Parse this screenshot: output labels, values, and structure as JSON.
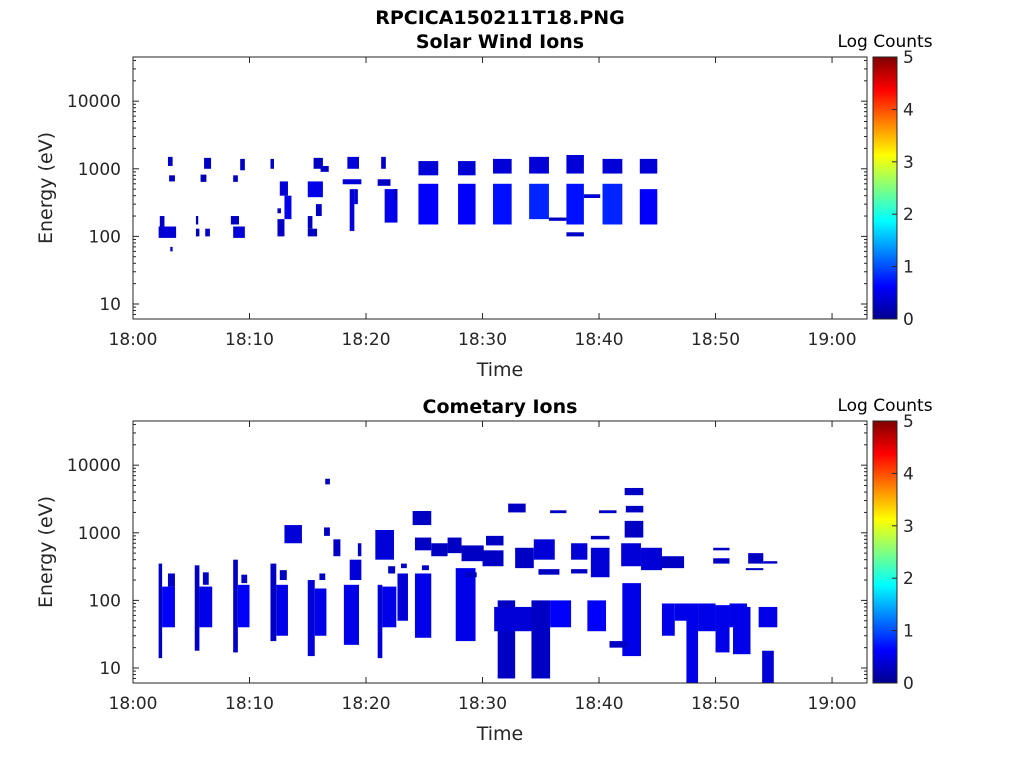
{
  "figure": {
    "title": "RPCICA150211T18.PNG"
  },
  "chart_data": [
    {
      "type": "heatmap",
      "title": "Solar Wind Ions",
      "xlabel": "Time",
      "ylabel": "Energy (eV)",
      "x_ticks": [
        "18:00",
        "18:10",
        "18:20",
        "18:30",
        "18:40",
        "18:50",
        "19:00"
      ],
      "xlim_minutes": [
        0,
        63
      ],
      "y_scale": "log",
      "y_ticks": [
        "10",
        "100",
        "1000",
        "10000"
      ],
      "ylim": [
        6,
        45000
      ],
      "colorbar": {
        "label": "Log Counts",
        "ticks": [
          "0",
          "1",
          "2",
          "3",
          "4",
          "5"
        ],
        "range": [
          0,
          5
        ],
        "colormap": "jet"
      },
      "cells": [
        [
          3.0,
          3.4,
          1100,
          1500,
          0.3
        ],
        [
          3.1,
          3.6,
          650,
          800,
          0.3
        ],
        [
          2.3,
          2.7,
          140,
          200,
          0.3
        ],
        [
          2.2,
          3.7,
          95,
          140,
          0.4
        ],
        [
          3.2,
          3.4,
          60,
          70,
          0.2
        ],
        [
          6.1,
          6.7,
          1000,
          1450,
          0.3
        ],
        [
          5.8,
          6.3,
          640,
          820,
          0.2
        ],
        [
          5.4,
          5.6,
          150,
          200,
          0.2
        ],
        [
          5.4,
          5.7,
          100,
          130,
          0.2
        ],
        [
          6.2,
          6.6,
          100,
          130,
          0.3
        ],
        [
          9.2,
          9.6,
          950,
          1400,
          0.3
        ],
        [
          8.6,
          9.0,
          640,
          800,
          0.3
        ],
        [
          8.4,
          9.1,
          150,
          200,
          0.3
        ],
        [
          8.6,
          9.6,
          95,
          140,
          0.4
        ],
        [
          11.8,
          12.1,
          1000,
          1400,
          0.3
        ],
        [
          12.6,
          13.3,
          400,
          650,
          0.4
        ],
        [
          12.4,
          12.7,
          220,
          260,
          0.3
        ],
        [
          12.4,
          13.0,
          100,
          180,
          0.3
        ],
        [
          13.0,
          13.6,
          180,
          400,
          0.5
        ],
        [
          15.5,
          16.3,
          1000,
          1450,
          0.3
        ],
        [
          16.1,
          16.8,
          900,
          1100,
          0.3
        ],
        [
          15.0,
          16.3,
          380,
          650,
          0.5
        ],
        [
          15.0,
          15.4,
          130,
          200,
          0.3
        ],
        [
          15.0,
          15.8,
          100,
          130,
          0.3
        ],
        [
          15.7,
          16.2,
          200,
          300,
          0.3
        ],
        [
          18.4,
          19.4,
          1000,
          1500,
          0.4
        ],
        [
          18.0,
          19.6,
          590,
          700,
          0.4
        ],
        [
          18.6,
          19.0,
          120,
          500,
          0.4
        ],
        [
          19.0,
          19.3,
          300,
          500,
          0.4
        ],
        [
          21.3,
          21.7,
          1000,
          1500,
          0.3
        ],
        [
          21.0,
          22.1,
          560,
          700,
          0.3
        ],
        [
          21.6,
          22.7,
          160,
          500,
          0.5
        ],
        [
          22.4,
          22.7,
          350,
          500,
          0.3
        ],
        [
          24.5,
          26.2,
          800,
          1300,
          0.4
        ],
        [
          24.5,
          26.2,
          150,
          600,
          0.6
        ],
        [
          27.9,
          29.4,
          800,
          1300,
          0.4
        ],
        [
          27.9,
          29.4,
          150,
          600,
          0.6
        ],
        [
          30.9,
          32.5,
          850,
          1400,
          0.4
        ],
        [
          30.9,
          32.5,
          150,
          600,
          0.7
        ],
        [
          34.0,
          35.7,
          850,
          1500,
          0.4
        ],
        [
          34.0,
          35.7,
          180,
          600,
          0.8
        ],
        [
          35.7,
          37.2,
          170,
          190,
          0.3
        ],
        [
          37.2,
          38.7,
          850,
          1600,
          0.4
        ],
        [
          37.2,
          38.7,
          150,
          600,
          0.7
        ],
        [
          37.2,
          38.7,
          100,
          115,
          0.3
        ],
        [
          38.7,
          40.1,
          370,
          420,
          0.4
        ],
        [
          40.3,
          42.0,
          850,
          1400,
          0.4
        ],
        [
          40.3,
          42.0,
          150,
          600,
          0.8
        ],
        [
          43.5,
          45.0,
          850,
          1400,
          0.4
        ],
        [
          43.5,
          45.0,
          150,
          500,
          0.6
        ]
      ]
    },
    {
      "type": "heatmap",
      "title": "Cometary Ions",
      "xlabel": "Time",
      "ylabel": "Energy (eV)",
      "x_ticks": [
        "18:00",
        "18:10",
        "18:20",
        "18:30",
        "18:40",
        "18:50",
        "19:00"
      ],
      "xlim_minutes": [
        0,
        63
      ],
      "y_scale": "log",
      "y_ticks": [
        "10",
        "100",
        "1000",
        "10000"
      ],
      "ylim": [
        6,
        45000
      ],
      "colorbar": {
        "label": "Log Counts",
        "ticks": [
          "0",
          "1",
          "2",
          "3",
          "4",
          "5"
        ],
        "range": [
          0,
          5
        ],
        "colormap": "jet"
      },
      "cells": [
        [
          2.2,
          2.5,
          14,
          350,
          0.3
        ],
        [
          2.5,
          3.6,
          40,
          160,
          0.6
        ],
        [
          3.0,
          3.6,
          160,
          250,
          0.3
        ],
        [
          5.3,
          5.7,
          18,
          330,
          0.3
        ],
        [
          5.7,
          6.8,
          40,
          160,
          0.5
        ],
        [
          6.0,
          6.5,
          170,
          260,
          0.3
        ],
        [
          8.6,
          9.0,
          17,
          400,
          0.3
        ],
        [
          9.0,
          10.0,
          40,
          170,
          0.6
        ],
        [
          9.3,
          9.8,
          180,
          240,
          0.3
        ],
        [
          11.8,
          12.3,
          25,
          350,
          0.3
        ],
        [
          12.3,
          13.3,
          30,
          170,
          0.5
        ],
        [
          12.6,
          13.2,
          200,
          280,
          0.3
        ],
        [
          15.0,
          15.6,
          15,
          200,
          0.4
        ],
        [
          15.6,
          16.6,
          30,
          150,
          0.5
        ],
        [
          16.0,
          16.5,
          200,
          250,
          0.3
        ],
        [
          13.0,
          14.5,
          700,
          1300,
          0.4
        ],
        [
          16.5,
          16.9,
          5200,
          6300,
          0.3
        ],
        [
          16.4,
          16.9,
          900,
          1200,
          0.3
        ],
        [
          17.2,
          17.8,
          450,
          800,
          0.3
        ],
        [
          18.1,
          19.4,
          22,
          170,
          0.5
        ],
        [
          18.6,
          19.6,
          200,
          400,
          0.4
        ],
        [
          19.3,
          19.6,
          450,
          700,
          0.3
        ],
        [
          21.0,
          21.4,
          14,
          170,
          0.4
        ],
        [
          21.4,
          22.6,
          40,
          160,
          0.5
        ],
        [
          20.8,
          22.4,
          400,
          1100,
          0.4
        ],
        [
          21.9,
          22.5,
          250,
          320,
          0.3
        ],
        [
          22.7,
          23.6,
          50,
          250,
          0.4
        ],
        [
          23.0,
          23.5,
          300,
          350,
          0.3
        ],
        [
          24.0,
          25.6,
          1300,
          2100,
          0.3
        ],
        [
          24.2,
          25.6,
          550,
          850,
          0.3
        ],
        [
          24.2,
          25.6,
          28,
          250,
          0.5
        ],
        [
          24.8,
          25.4,
          280,
          330,
          0.3
        ],
        [
          25.6,
          27.0,
          450,
          700,
          0.3
        ],
        [
          27.0,
          28.2,
          500,
          850,
          0.3
        ],
        [
          28.2,
          30.1,
          380,
          650,
          0.3
        ],
        [
          27.7,
          29.4,
          25,
          300,
          0.5
        ],
        [
          28.5,
          29.5,
          220,
          260,
          0.3
        ],
        [
          30.0,
          31.8,
          320,
          550,
          0.3
        ],
        [
          30.3,
          31.8,
          650,
          900,
          0.3
        ],
        [
          31.3,
          32.8,
          7,
          100,
          0.3
        ],
        [
          31.0,
          34.4,
          35,
          80,
          0.4
        ],
        [
          32.8,
          34.4,
          300,
          600,
          0.3
        ],
        [
          32.2,
          33.7,
          2000,
          2700,
          0.3
        ],
        [
          34.2,
          35.8,
          7,
          100,
          0.3
        ],
        [
          34.4,
          36.2,
          400,
          800,
          0.4
        ],
        [
          34.8,
          36.6,
          240,
          290,
          0.3
        ],
        [
          35.8,
          37.2,
          1950,
          2150,
          0.3
        ],
        [
          35.8,
          37.6,
          40,
          100,
          0.6
        ],
        [
          37.6,
          39.0,
          400,
          700,
          0.4
        ],
        [
          37.6,
          39.0,
          250,
          290,
          0.3
        ],
        [
          39.0,
          40.6,
          35,
          100,
          0.6
        ],
        [
          39.3,
          40.9,
          220,
          600,
          0.4
        ],
        [
          39.3,
          40.9,
          800,
          900,
          0.3
        ],
        [
          40.0,
          41.5,
          1950,
          2150,
          0.3
        ],
        [
          42.0,
          43.6,
          15,
          180,
          0.5
        ],
        [
          40.9,
          42.4,
          20,
          25,
          0.3
        ],
        [
          41.9,
          43.6,
          320,
          700,
          0.4
        ],
        [
          42.2,
          43.8,
          850,
          1500,
          0.3
        ],
        [
          42.3,
          43.8,
          2000,
          2500,
          0.3
        ],
        [
          42.2,
          43.8,
          3600,
          4600,
          0.3
        ],
        [
          43.6,
          45.4,
          280,
          600,
          0.4
        ],
        [
          45.4,
          46.5,
          30,
          90,
          0.5
        ],
        [
          45.3,
          47.3,
          300,
          450,
          0.3
        ],
        [
          46.5,
          47.7,
          50,
          90,
          0.5
        ],
        [
          47.5,
          48.5,
          6,
          90,
          0.5
        ],
        [
          48.5,
          50.0,
          35,
          90,
          0.5
        ],
        [
          49.8,
          51.2,
          350,
          420,
          0.3
        ],
        [
          49.8,
          51.2,
          550,
          600,
          0.3
        ],
        [
          50.0,
          51.2,
          17,
          85,
          0.5
        ],
        [
          51.2,
          52.7,
          40,
          90,
          0.5
        ],
        [
          51.5,
          53.0,
          16,
          80,
          0.5
        ],
        [
          52.6,
          54.1,
          280,
          300,
          0.3
        ],
        [
          52.8,
          54.1,
          350,
          500,
          0.3
        ],
        [
          53.7,
          55.3,
          40,
          80,
          0.5
        ],
        [
          54.1,
          55.3,
          350,
          380,
          0.3
        ],
        [
          54.0,
          55.0,
          6,
          18,
          0.4
        ]
      ]
    }
  ]
}
